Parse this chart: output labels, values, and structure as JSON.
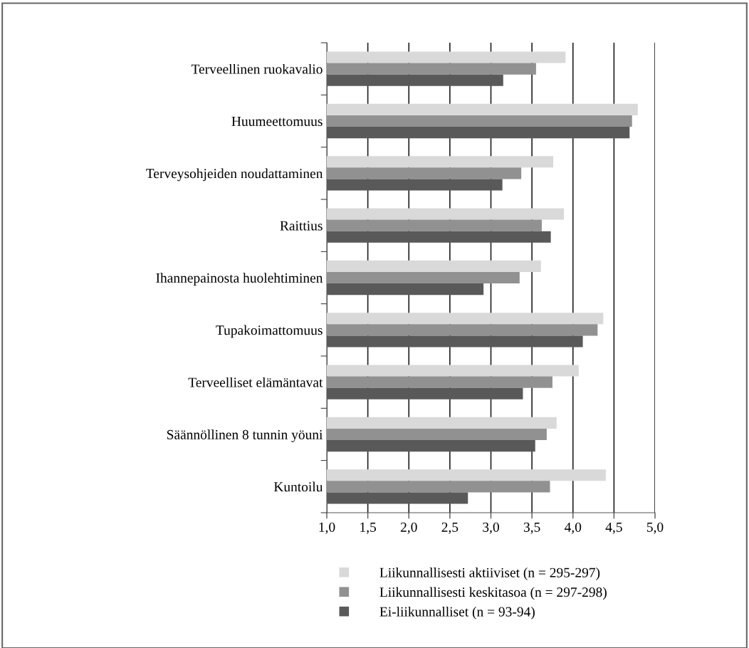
{
  "chart_data": {
    "type": "bar",
    "orientation": "horizontal",
    "categories": [
      "Terveellinen ruokavalio",
      "Huumeettomuus",
      "Terveysohjeiden noudattaminen",
      "Raittius",
      "Ihannepainosta huolehtiminen",
      "Tupakoimattomuus",
      "Terveelliset elämäntavat",
      "Säännöllinen 8 tunnin yöuni",
      "Kuntoilu"
    ],
    "series": [
      {
        "name": "Liikunnallisesti aktiiviset (n = 295-297)",
        "color": "#d9d9d9",
        "values": [
          3.91,
          4.79,
          3.76,
          3.89,
          3.61,
          4.37,
          4.07,
          3.8,
          4.4
        ]
      },
      {
        "name": "Liikunnallisesti keskitasoa (n = 297-298)",
        "color": "#919191",
        "values": [
          3.55,
          4.72,
          3.37,
          3.62,
          3.35,
          4.3,
          3.75,
          3.68,
          3.72
        ]
      },
      {
        "name": "Ei-liikunnalliset (n = 93-94)",
        "color": "#595959",
        "values": [
          3.15,
          4.69,
          3.14,
          3.73,
          2.91,
          4.12,
          3.39,
          3.54,
          2.72
        ]
      }
    ],
    "xlim": [
      1,
      5
    ],
    "xticks": [
      {
        "value": 1,
        "label": "1,0"
      },
      {
        "value": 1.5,
        "label": "1,5"
      },
      {
        "value": 2,
        "label": "2,0"
      },
      {
        "value": 2.5,
        "label": "2,5"
      },
      {
        "value": 3,
        "label": "3,0"
      },
      {
        "value": 3.5,
        "label": "3,5"
      },
      {
        "value": 4,
        "label": "4,0"
      },
      {
        "value": 4.5,
        "label": "4,5"
      },
      {
        "value": 5,
        "label": "5,0"
      }
    ],
    "grid": "x",
    "legend": "bottom"
  }
}
